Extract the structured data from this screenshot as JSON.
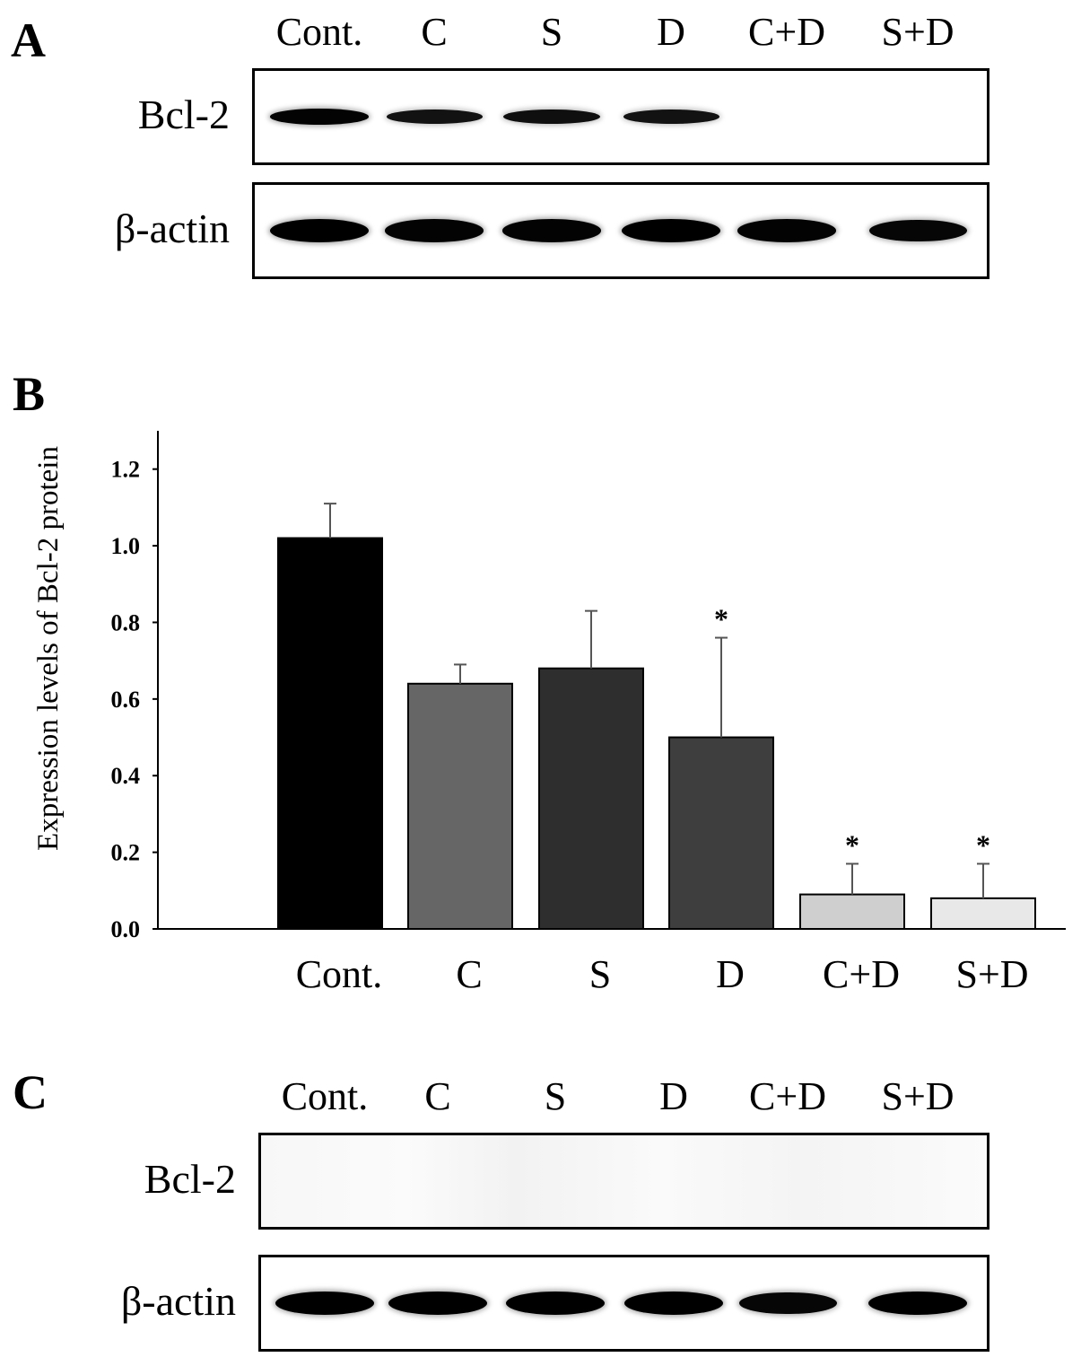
{
  "panels": {
    "a": {
      "letter": "A",
      "lanes": [
        "Cont.",
        "C",
        "S",
        "D",
        "C+D",
        "S+D"
      ],
      "rows": [
        {
          "label": "Bcl-2",
          "intensity": [
            0.95,
            0.7,
            0.75,
            0.7,
            0.0,
            0.0
          ]
        },
        {
          "label": "β-actin",
          "intensity": [
            1.0,
            0.95,
            0.95,
            1.0,
            0.95,
            0.9
          ]
        }
      ]
    },
    "b": {
      "letter": "B"
    },
    "c": {
      "letter": "C",
      "lanes": [
        "Cont.",
        "C",
        "S",
        "D",
        "C+D",
        "S+D"
      ],
      "rows": [
        {
          "label": "Bcl-2",
          "intensity": [
            0.0,
            0.0,
            0.0,
            0.0,
            0.0,
            0.0
          ]
        },
        {
          "label": "β-actin",
          "intensity": [
            1.0,
            1.0,
            1.0,
            1.0,
            0.9,
            1.0
          ]
        }
      ]
    }
  },
  "chart_data": {
    "type": "bar",
    "title": "",
    "xlabel": "",
    "ylabel": "Expression levels of Bcl-2 protein",
    "categories": [
      "Cont.",
      "C",
      "S",
      "D",
      "C+D",
      "S+D"
    ],
    "values": [
      1.02,
      0.64,
      0.68,
      0.5,
      0.09,
      0.08
    ],
    "errors": [
      0.09,
      0.05,
      0.15,
      0.26,
      0.08,
      0.09
    ],
    "significance": [
      "",
      "",
      "",
      "*",
      "*",
      "*"
    ],
    "bar_colors": [
      "#000000",
      "#666666",
      "#2e2e2e",
      "#3e3e3e",
      "#cfcfcf",
      "#e8e8e8"
    ],
    "yticks": [
      "0.0",
      "0.2",
      "0.4",
      "0.6",
      "0.8",
      "1.0",
      "1.2"
    ],
    "ylim": [
      0,
      1.3
    ],
    "grid": false
  }
}
